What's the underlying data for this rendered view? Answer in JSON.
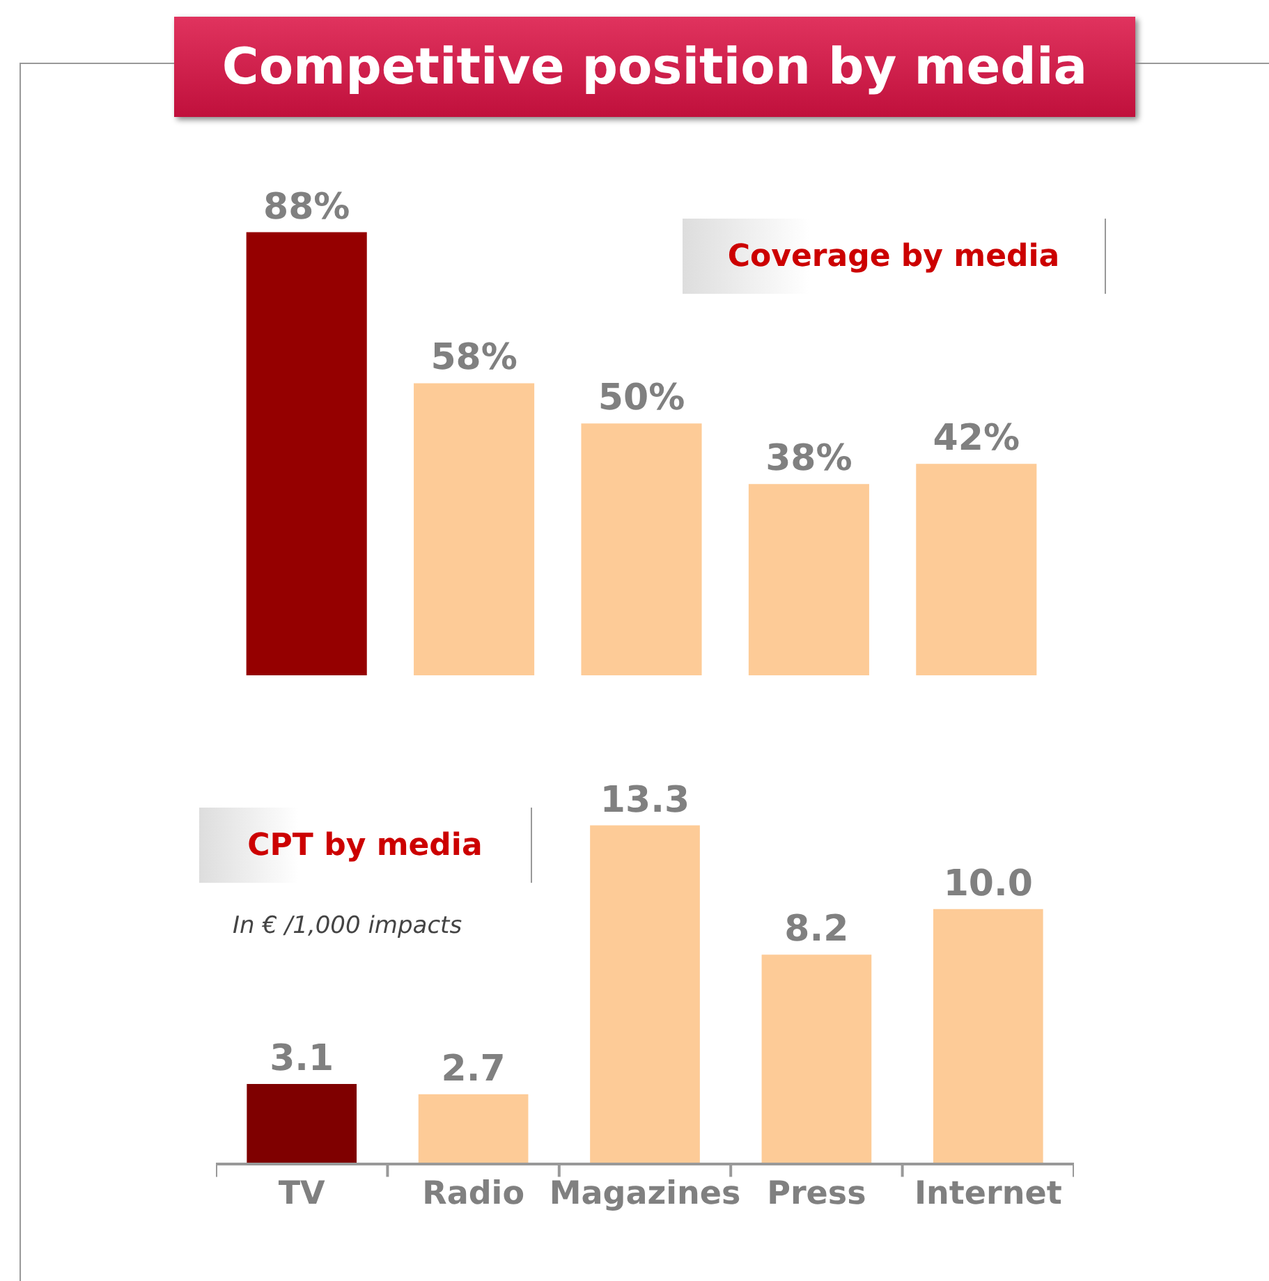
{
  "chart_data": [
    {
      "type": "bar",
      "title": "Competitive position by media",
      "subtitle": "Coverage by media",
      "categories": [
        null,
        null,
        null,
        null,
        null
      ],
      "values": [
        88,
        58,
        50,
        38,
        42
      ],
      "colors": [
        "#950000",
        "#fdcb97",
        "#fdcb97",
        "#fdcb97",
        "#fdcb97"
      ],
      "value_labels": [
        "88%",
        "58%",
        "50%",
        "38%",
        "42%"
      ],
      "tick_labels": false
    },
    {
      "type": "bar",
      "title": "CPT by media",
      "subtitle": "In € /1,000 impacts",
      "categories": [
        "TV",
        "Radio",
        "Magazines",
        "Press",
        "Internet"
      ],
      "values": [
        3.1,
        2.7,
        13.3,
        8.2,
        10.0
      ],
      "colors": [
        "#7f0000",
        "#fdcb97",
        "#fdcb97",
        "#fdcb97",
        "#fdcb97"
      ],
      "value_labels": [
        "3.1",
        "2.7",
        "13.3",
        "8.2",
        "10.0"
      ],
      "tick_labels": "x"
    }
  ]
}
